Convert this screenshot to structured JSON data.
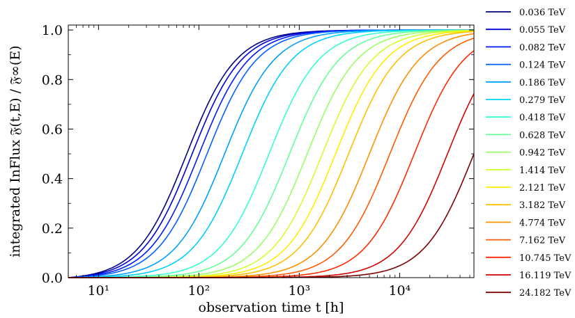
{
  "chart_data": {
    "type": "line",
    "xlabel": "observation time t [h]",
    "ylabel": "integrated InFlux 𝔉(t,E) / 𝔉∞(E)",
    "xscale": "log",
    "xlim": [
      5,
      55000
    ],
    "ylim": [
      0.0,
      1.02
    ],
    "xticks": [
      {
        "value": 10,
        "label": "10¹"
      },
      {
        "value": 100,
        "label": "10²"
      },
      {
        "value": 1000,
        "label": "10³"
      },
      {
        "value": 10000,
        "label": "10⁴"
      }
    ],
    "yticks": [
      {
        "value": 0.0,
        "label": "0.0"
      },
      {
        "value": 0.2,
        "label": "0.2"
      },
      {
        "value": 0.4,
        "label": "0.4"
      },
      {
        "value": 0.6,
        "label": "0.6"
      },
      {
        "value": 0.8,
        "label": "0.8"
      },
      {
        "value": 1.0,
        "label": "1.0"
      }
    ],
    "grid": false,
    "legend_position": "right",
    "series": [
      {
        "name": "0.036 TeV",
        "color": "#00007f",
        "t_half": 75
      },
      {
        "name": "0.055 TeV",
        "color": "#0000d4",
        "t_half": 85
      },
      {
        "name": "0.082 TeV",
        "color": "#0018ff",
        "t_half": 100
      },
      {
        "name": "0.124 TeV",
        "color": "#0060ff",
        "t_half": 120
      },
      {
        "name": "0.186 TeV",
        "color": "#00a0ff",
        "t_half": 180
      },
      {
        "name": "0.279 TeV",
        "color": "#00d0ff",
        "t_half": 270
      },
      {
        "name": "0.418 TeV",
        "color": "#33ffd0",
        "t_half": 500
      },
      {
        "name": "0.628 TeV",
        "color": "#66ff9a",
        "t_half": 800
      },
      {
        "name": "0.942 TeV",
        "color": "#9aff66",
        "t_half": 1200
      },
      {
        "name": "1.414 TeV",
        "color": "#d0ff30",
        "t_half": 1700
      },
      {
        "name": "2.121 TeV",
        "color": "#ffee00",
        "t_half": 2300
      },
      {
        "name": "3.182 TeV",
        "color": "#ffc000",
        "t_half": 3100
      },
      {
        "name": "4.774 TeV",
        "color": "#ff9000",
        "t_half": 5000
      },
      {
        "name": "7.162 TeV",
        "color": "#ff5a00",
        "t_half": 8000
      },
      {
        "name": "10.745 TeV",
        "color": "#ff2a00",
        "t_half": 14000
      },
      {
        "name": "16.119 TeV",
        "color": "#d40000",
        "t_half": 30000
      },
      {
        "name": "24.182 TeV",
        "color": "#7f0000",
        "t_half": 55000
      }
    ]
  }
}
